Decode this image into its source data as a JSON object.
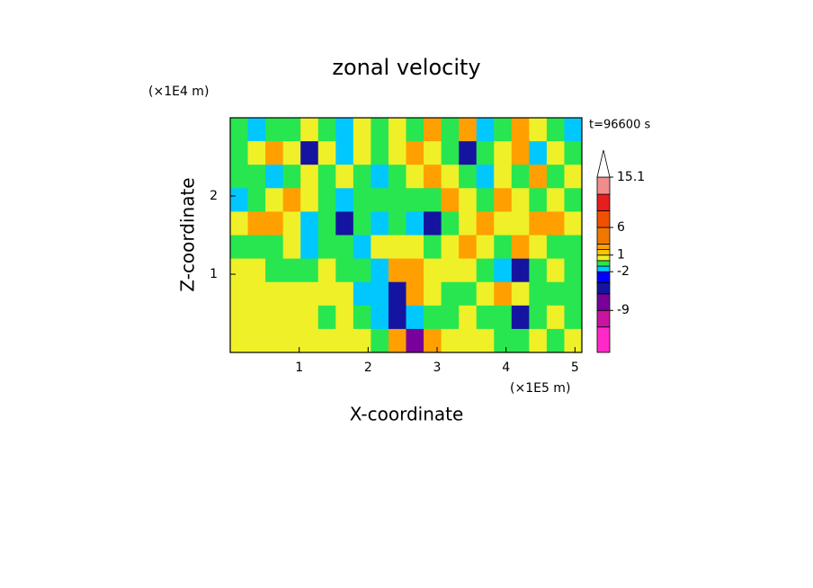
{
  "chart_data": {
    "type": "contour",
    "title": "zonal velocity",
    "y_unit": "(×1E4 m)",
    "x_unit": "(×1E5 m)",
    "time_label": "t=96600 s",
    "x_label": "X-coordinate",
    "y_label": "Z-coordinate",
    "xlim": [
      0,
      5.1
    ],
    "ylim": [
      0,
      3
    ],
    "xticks": [
      1,
      2,
      3,
      4,
      5
    ],
    "yticks": [
      1,
      2
    ],
    "levels": [
      -16.6,
      -12,
      -9,
      -6,
      -4,
      -2,
      -1,
      0,
      1,
      2,
      3,
      6,
      9,
      12,
      15.1
    ],
    "colors": [
      "#ff28c8",
      "#c814a0",
      "#78009b",
      "#1414a0",
      "#0000ff",
      "#00c8ff",
      "#28e650",
      "#f0f028",
      "#f5c800",
      "#ffa000",
      "#f07800",
      "#f05000",
      "#e61e1e",
      "#f08c8c"
    ],
    "over_color": "#ffffff",
    "colorbar_ticks": [
      15.1,
      6,
      1,
      -2,
      -9
    ],
    "z": [
      [
        -0.5,
        -1.5,
        -0.5,
        -0.5,
        0.5,
        -0.5,
        -1.5,
        0.5,
        -0.5,
        0.5,
        -0.5,
        2.5,
        -0.5,
        2.5,
        -1.5,
        -0.5,
        2.5,
        0.5,
        -0.5,
        -1.5
      ],
      [
        -0.5,
        0.5,
        2.5,
        0.5,
        -5,
        0.5,
        -1.5,
        0.5,
        -0.5,
        0.5,
        2.5,
        0.5,
        -0.5,
        -5,
        -0.5,
        0.5,
        2.5,
        -1.5,
        0.5,
        -0.5
      ],
      [
        -0.5,
        -0.5,
        -1.5,
        -0.5,
        0.5,
        -0.5,
        0.5,
        -0.5,
        -1.5,
        -0.5,
        0.5,
        2.5,
        0.5,
        -0.5,
        -1.5,
        0.5,
        -0.5,
        2.5,
        -0.5,
        0.5
      ],
      [
        -1.5,
        -0.5,
        0.5,
        2.5,
        0.5,
        -0.5,
        -1.5,
        -0.5,
        -0.5,
        -0.5,
        -0.5,
        -0.5,
        2.5,
        0.5,
        -0.5,
        2.5,
        0.5,
        -0.5,
        0.5,
        -0.5
      ],
      [
        0.5,
        2.5,
        2.5,
        0.5,
        -1.5,
        -0.5,
        -5,
        -0.5,
        -1.5,
        -0.5,
        -1.5,
        -5,
        -0.5,
        0.5,
        2.5,
        0.5,
        0.5,
        2.5,
        2.5,
        0.5
      ],
      [
        -0.5,
        -0.5,
        -0.5,
        0.5,
        -1.5,
        -0.5,
        -0.5,
        -1.5,
        0.5,
        0.5,
        0.5,
        -0.5,
        0.5,
        2.5,
        0.5,
        -0.5,
        2.5,
        0.5,
        -0.5,
        -0.5
      ],
      [
        0.5,
        0.5,
        -0.5,
        -0.5,
        -0.5,
        0.5,
        -0.5,
        -0.5,
        -1.5,
        2.5,
        2.5,
        0.5,
        0.5,
        0.5,
        -0.5,
        -1.5,
        -5,
        -0.5,
        0.5,
        -0.5
      ],
      [
        0.5,
        0.5,
        0.5,
        0.5,
        0.5,
        0.5,
        0.5,
        -1.5,
        -1.5,
        -5,
        2.5,
        0.5,
        -0.5,
        -0.5,
        0.5,
        2.5,
        0.5,
        -0.5,
        -0.5,
        -0.5
      ],
      [
        0.5,
        0.5,
        0.5,
        0.5,
        0.5,
        -0.5,
        0.5,
        -0.5,
        -1.5,
        -5,
        -1.5,
        -0.5,
        -0.5,
        0.5,
        -0.5,
        -0.5,
        -5,
        -0.5,
        0.5,
        -0.5
      ],
      [
        0.5,
        0.5,
        0.5,
        0.5,
        0.5,
        0.5,
        0.5,
        0.5,
        -0.5,
        2.5,
        -9,
        2.5,
        0.5,
        0.5,
        0.5,
        -0.5,
        -0.5,
        0.5,
        -0.5,
        0.5
      ]
    ]
  }
}
